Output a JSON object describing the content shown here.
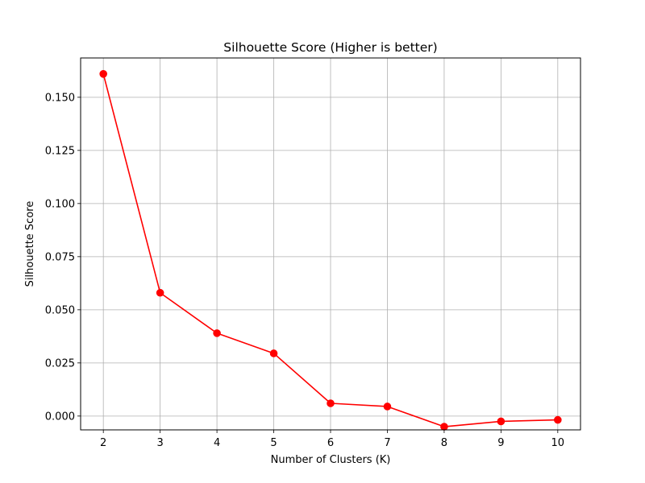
{
  "chart_data": {
    "type": "line",
    "title": "Silhouette Score (Higher is better)",
    "xlabel": "Number of Clusters (K)",
    "ylabel": "Silhouette Score",
    "grid": true,
    "xlim": [
      1.6,
      10.4
    ],
    "ylim": [
      -0.0065,
      0.1685
    ],
    "x_ticks": [
      2,
      3,
      4,
      5,
      6,
      7,
      8,
      9,
      10
    ],
    "y_ticks": [
      0.0,
      0.025,
      0.05,
      0.075,
      0.1,
      0.125,
      0.15
    ],
    "y_tick_labels": [
      "0.000",
      "0.025",
      "0.050",
      "0.075",
      "0.100",
      "0.125",
      "0.150"
    ],
    "series": [
      {
        "color": "#ff0000",
        "marker": "circle",
        "x": [
          2,
          3,
          4,
          5,
          6,
          7,
          8,
          9,
          10
        ],
        "y": [
          0.161,
          0.058,
          0.039,
          0.0295,
          0.006,
          0.0045,
          -0.005,
          -0.0025,
          -0.0018
        ]
      }
    ]
  },
  "colors": {
    "line": "#ff0000",
    "grid": "#b0b0b0",
    "axes": "#000000",
    "background": "#ffffff"
  }
}
